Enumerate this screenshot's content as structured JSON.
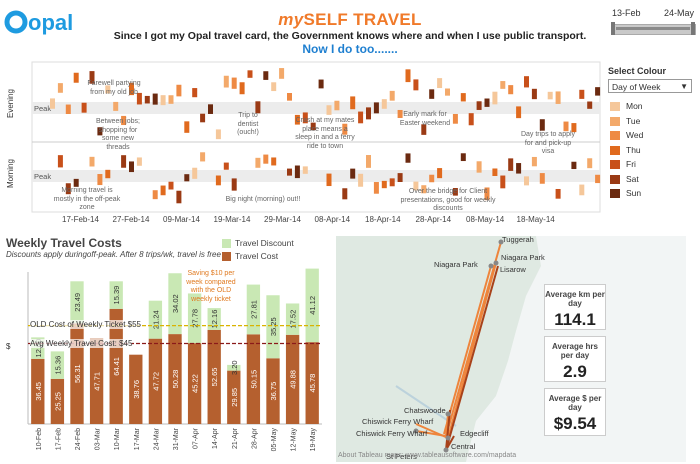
{
  "header": {
    "logo_text": "opal",
    "title_my": "my",
    "title_rest": "SELF TRAVEL",
    "subtitle": "Since I got my Opal travel card, the Government knows where and when I use public transport.",
    "subtitle2": "Now I do too.......",
    "slider_start": "13-Feb",
    "slider_end": "24-May"
  },
  "colour_panel": {
    "label": "Select Colour",
    "selected": "Day of Week",
    "legend": [
      {
        "label": "Mon",
        "color": "#f5c79a"
      },
      {
        "label": "Tue",
        "color": "#f3a96a"
      },
      {
        "label": "Wed",
        "color": "#ee8a44"
      },
      {
        "label": "Thu",
        "color": "#e06a1e"
      },
      {
        "label": "Fri",
        "color": "#c8501a"
      },
      {
        "label": "Sat",
        "color": "#9a3a14"
      },
      {
        "label": "Sun",
        "color": "#6b2a10"
      }
    ]
  },
  "timeline": {
    "evening_label": "Evening",
    "morning_label": "Morning",
    "peak_label": "Peak",
    "dates": [
      "17-Feb-14",
      "27-Feb-14",
      "09-Mar-14",
      "19-Mar-14",
      "29-Mar-14",
      "08-Apr-14",
      "18-Apr-14",
      "28-Apr-14",
      "08-May-14",
      "18-May-14"
    ],
    "notes": {
      "n1": "Farewell partying from my old job",
      "n2": "Between jobs; shopping for some new threads",
      "n3": "Trip to dentist (ouch!)",
      "n4": "Crash at my mates place means a sleep in and a ferry ride to town",
      "n5": "Early mark for Easter weekend",
      "n6": "Day trips to apply for and pick-up visa",
      "n7": "Morning travel is mostly in the off-peak zone",
      "n8": "Big night (morning) out!!",
      "n9": "Over the bridge for Client presentations, good for weekly discounts"
    }
  },
  "weekly": {
    "title": "Weekly Travel Costs",
    "subtitle": "Discounts apply duringoff-peak. After 8 trips/wk, travel is free",
    "legend_discount": "Travel Discount",
    "legend_cost": "Travel Cost",
    "y_label": "$",
    "old_cost_label": "OLD Cost of Weekly Ticket $55",
    "avg_cost_label": "Avg Weekly Travel Cost: $45",
    "callout": "Saving $10 per week compared with the OLD weekly ticket",
    "colors": {
      "discount": "#c9e8b4",
      "cost": "#b5602f",
      "old_line": "#d9b300",
      "avg_line": "#8b1a1a"
    }
  },
  "chart_data": {
    "type": "bar",
    "categories": [
      "10-Feb",
      "17-Feb",
      "24-Feb",
      "03-Mar",
      "10-Mar",
      "17-Mar",
      "24-Mar",
      "31-Mar",
      "07-Apr",
      "14-Apr",
      "21-Apr",
      "28-Apr",
      "05-May",
      "12-May",
      "19-May"
    ],
    "series": [
      {
        "name": "Travel Cost",
        "values": [
          36.45,
          25.25,
          56.31,
          47.71,
          64.41,
          38.76,
          47.72,
          50.28,
          45.22,
          52.65,
          29.85,
          50.15,
          36.75,
          49.88,
          45.78
        ]
      },
      {
        "name": "Travel Discount",
        "values": [
          12.0,
          15.36,
          23.49,
          0,
          15.39,
          0,
          21.24,
          34.02,
          27.78,
          12.16,
          3.2,
          27.81,
          35.25,
          17.52,
          41.12
        ]
      }
    ],
    "ylabel": "$",
    "ylim": [
      0,
      85
    ],
    "reference_lines": [
      {
        "label": "OLD Cost of Weekly Ticket $55",
        "value": 55
      },
      {
        "label": "Avg Weekly Travel Cost: $45",
        "value": 45
      }
    ]
  },
  "map": {
    "places": [
      "Tuggerah",
      "Niagara Park",
      "Niagara Park",
      "Lisarow",
      "Chatswoode",
      "Chiswick Ferry Wharf",
      "Chiswick Ferry Wharf",
      "Edgecliff",
      "Central",
      "St Peters"
    ],
    "attribution": "About Tableau maps: www.tableausoftware.com/mapdata",
    "stats": [
      {
        "label": "Average km per day",
        "value": "114.1"
      },
      {
        "label": "Average hrs per day",
        "value": "2.9"
      },
      {
        "label": "Average $ per day",
        "value": "$9.54"
      }
    ]
  }
}
